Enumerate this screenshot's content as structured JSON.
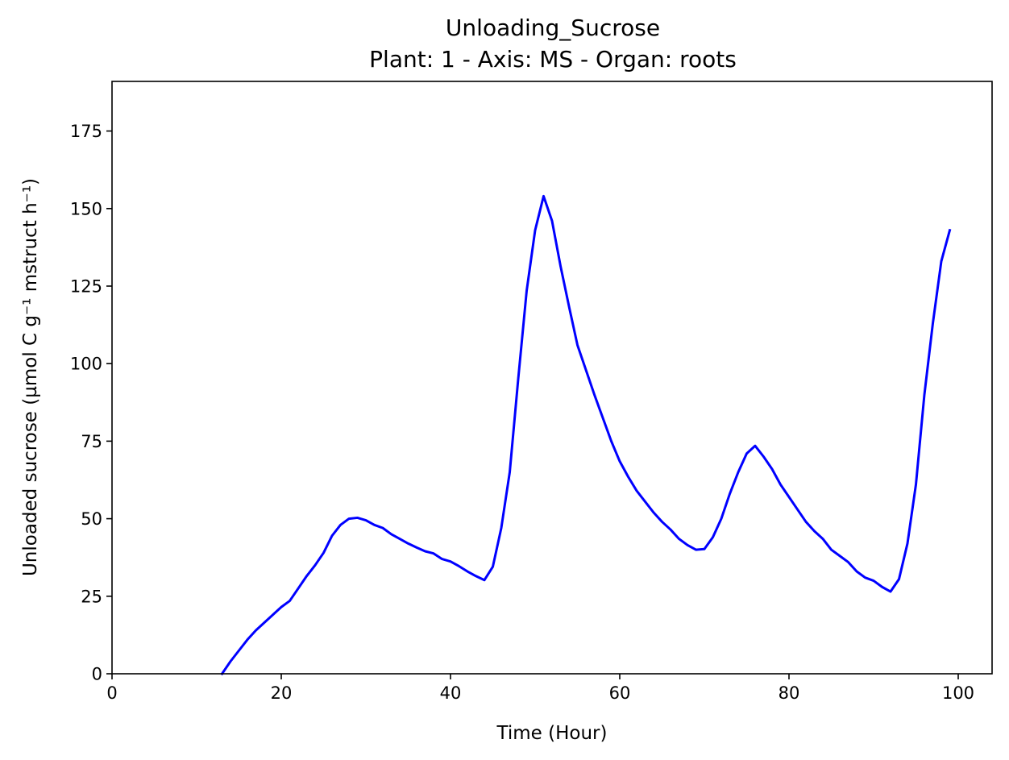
{
  "chart_data": {
    "type": "line",
    "title": "Unloading_Sucrose",
    "subtitle": "Plant: 1 - Axis: MS - Organ: roots",
    "xlabel": "Time (Hour)",
    "ylabel": "Unloaded sucrose (µmol C g⁻¹ mstruct h⁻¹)",
    "xlim": [
      0,
      104
    ],
    "ylim": [
      0,
      191
    ],
    "xticks": [
      0,
      20,
      40,
      60,
      80,
      100
    ],
    "yticks": [
      0,
      25,
      50,
      75,
      100,
      125,
      150,
      175
    ],
    "grid": false,
    "series": [
      {
        "color": "#0000ff",
        "x": [
          13,
          14,
          15,
          16,
          17,
          18,
          19,
          20,
          21,
          22,
          23,
          24,
          25,
          26,
          27,
          28,
          29,
          30,
          31,
          32,
          33,
          34,
          35,
          36,
          37,
          38,
          39,
          40,
          41,
          42,
          43,
          44,
          45,
          46,
          47,
          48,
          49,
          50,
          51,
          52,
          53,
          54,
          55,
          56,
          57,
          58,
          59,
          60,
          61,
          62,
          63,
          64,
          65,
          66,
          67,
          68,
          69,
          70,
          71,
          72,
          73,
          74,
          75,
          76,
          77,
          78,
          79,
          80,
          81,
          82,
          83,
          84,
          85,
          86,
          87,
          88,
          89,
          90,
          91,
          92,
          93,
          94,
          95,
          96,
          97,
          98,
          99
        ],
        "y": [
          0,
          4,
          7.5,
          11,
          14,
          16.5,
          19,
          21.5,
          23.5,
          27.5,
          31.5,
          35,
          39,
          44.5,
          48,
          50,
          50.3,
          49.5,
          48,
          47,
          45,
          43.5,
          42,
          40.7,
          39.5,
          38.8,
          37,
          36.2,
          34.7,
          33,
          31.5,
          30.2,
          34.5,
          47,
          65,
          95,
          123.5,
          143,
          154,
          146,
          131.5,
          118.5,
          106,
          98,
          90,
          82.5,
          75,
          68.5,
          63.5,
          59,
          55.5,
          52,
          49,
          46.5,
          43.5,
          41.5,
          40,
          40.2,
          44,
          50,
          58,
          65,
          71,
          73.5,
          70,
          66,
          61,
          57,
          53,
          49,
          46,
          43.5,
          40,
          38,
          36,
          33,
          31,
          30,
          28,
          26.5,
          30.5,
          42,
          61,
          90,
          113,
          133,
          143
        ]
      }
    ]
  }
}
